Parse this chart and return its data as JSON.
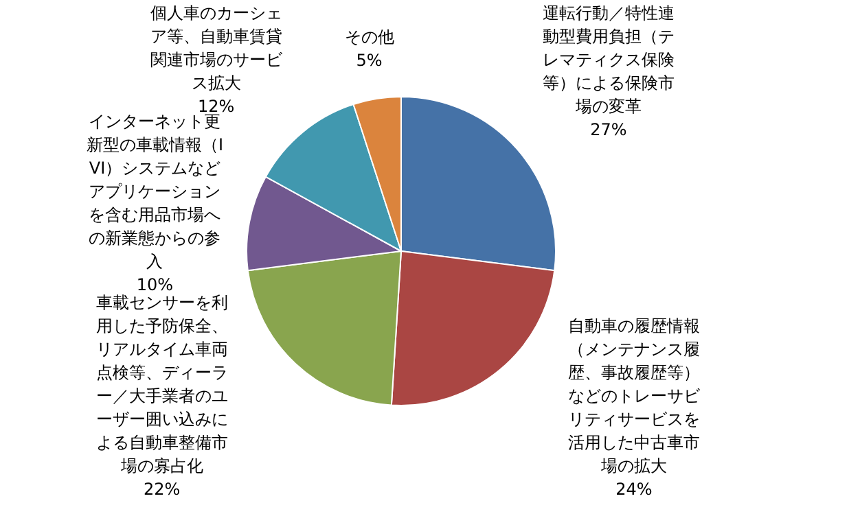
{
  "chart_data": {
    "type": "pie",
    "categories": [
      "運転行動／特性連動型費用負担（テレマティクス保険等）による保険市場の変革",
      "自動車の履歴情報（メンテナンス履歴、事故履歴等）などのトレーサビリティサービスを活用した中古車市場の拡大",
      "車載センサーを利用した予防保全、リアルタイム車両点検等、ディーラー／大手業者のユーザー囲い込みによる自動車整備市場の寡占化",
      "インターネット更新型の車載情報（IVI）システムなどアプリケーションを含む用品市場への新業態からの参入",
      "個人車のカーシェア等、自動車賃貸関連市場のサービス拡大",
      "その他"
    ],
    "values": [
      27,
      24,
      22,
      10,
      12,
      5
    ],
    "value_labels": [
      "27%",
      "24%",
      "22%",
      "10%",
      "12%",
      "5%"
    ],
    "colors": [
      "#4572a7",
      "#aa4643",
      "#89a54e",
      "#71588f",
      "#4198af",
      "#db843d"
    ],
    "legend": false
  }
}
